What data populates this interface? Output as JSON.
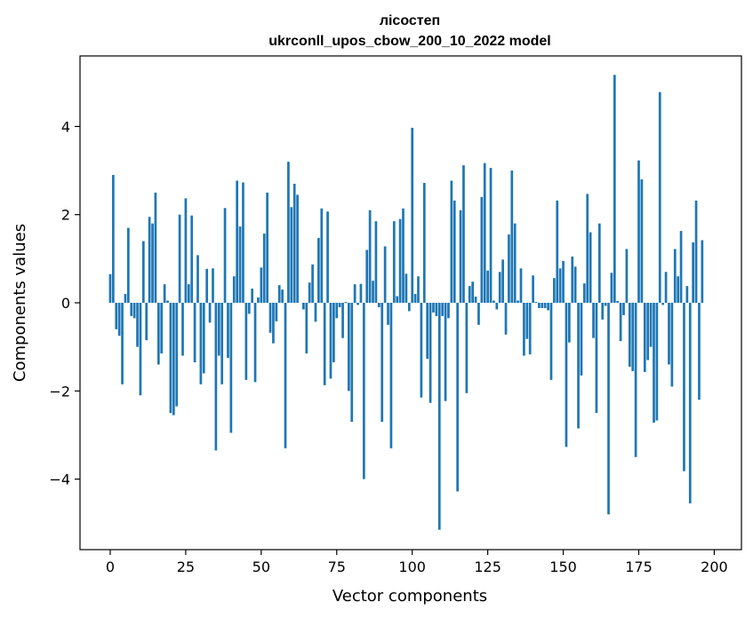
{
  "chart_data": {
    "type": "bar",
    "title": "лісостеп",
    "subtitle": "ukrconll_upos_cbow_200_10_2022 model",
    "xlabel": "Vector components",
    "ylabel": "Components values",
    "xlim": [
      -10,
      209
    ],
    "ylim": [
      -5.6,
      5.6
    ],
    "xticks": [
      0,
      25,
      50,
      75,
      100,
      125,
      150,
      175,
      200
    ],
    "yticks": [
      -4,
      -2,
      0,
      2,
      4
    ],
    "ytick_labels": [
      "−4",
      "−2",
      "0",
      "2",
      "4"
    ],
    "grid": false,
    "bar_color": "#1f77b4",
    "x_start": 0,
    "values": [
      0.65,
      2.9,
      -0.6,
      -0.75,
      -1.85,
      0.2,
      1.7,
      -0.3,
      -0.35,
      -1.0,
      -2.1,
      1.4,
      -0.85,
      1.95,
      1.8,
      2.5,
      -1.4,
      -1.15,
      0.42,
      0.05,
      -2.5,
      -2.55,
      -2.35,
      2.0,
      -1.2,
      2.37,
      0.42,
      1.98,
      -1.35,
      1.08,
      -1.85,
      -1.6,
      0.77,
      -0.45,
      0.78,
      -3.35,
      -1.2,
      -1.85,
      2.15,
      -1.25,
      -2.95,
      0.6,
      2.77,
      1.73,
      2.73,
      -1.75,
      -0.25,
      0.32,
      -1.8,
      0.12,
      0.8,
      1.57,
      2.5,
      -0.68,
      -0.92,
      -0.42,
      0.4,
      0.3,
      -3.3,
      3.2,
      2.17,
      2.7,
      2.45,
      0.0,
      -0.15,
      -1.15,
      0.46,
      0.87,
      -0.43,
      1.47,
      2.14,
      -1.87,
      2.07,
      -1.72,
      -1.35,
      -0.35,
      -0.1,
      -0.8,
      0.02,
      -2.0,
      -2.7,
      0.42,
      -0.05,
      0.43,
      -4.0,
      1.2,
      2.1,
      0.5,
      1.85,
      -0.1,
      -2.7,
      1.28,
      -0.5,
      -3.3,
      1.85,
      0.15,
      1.9,
      2.14,
      0.66,
      -0.19,
      3.97,
      0.2,
      0.6,
      -2.15,
      2.72,
      -1.27,
      -2.27,
      -0.22,
      -0.3,
      -5.15,
      -0.3,
      -2.23,
      -0.35,
      2.77,
      2.32,
      -4.28,
      2.1,
      3.12,
      -2.05,
      0.38,
      0.48,
      0.14,
      -0.5,
      2.4,
      3.17,
      0.73,
      3.06,
      0.05,
      -0.15,
      0.7,
      0.98,
      -0.72,
      1.55,
      3.0,
      1.8,
      0.05,
      0.78,
      -1.2,
      -0.82,
      -1.17,
      0.62,
      0.02,
      -0.12,
      -0.12,
      -0.12,
      -0.17,
      -1.75,
      0.56,
      2.32,
      0.78,
      0.95,
      -3.27,
      -0.9,
      1.05,
      0.82,
      -2.85,
      -1.65,
      0.44,
      2.47,
      1.6,
      -0.8,
      -2.5,
      1.8,
      -0.38,
      -0.07,
      -4.8,
      0.68,
      5.17,
      0.04,
      -0.87,
      -0.28,
      1.22,
      -1.45,
      -1.55,
      -3.5,
      3.23,
      2.8,
      -1.57,
      -1.3,
      -1.0,
      -2.72,
      -2.67,
      4.78,
      -0.05,
      0.7,
      -1.4,
      -1.9,
      1.22,
      0.6,
      1.63,
      -3.82,
      0.38,
      -4.55,
      1.37,
      2.32,
      -2.2,
      1.42
    ]
  }
}
